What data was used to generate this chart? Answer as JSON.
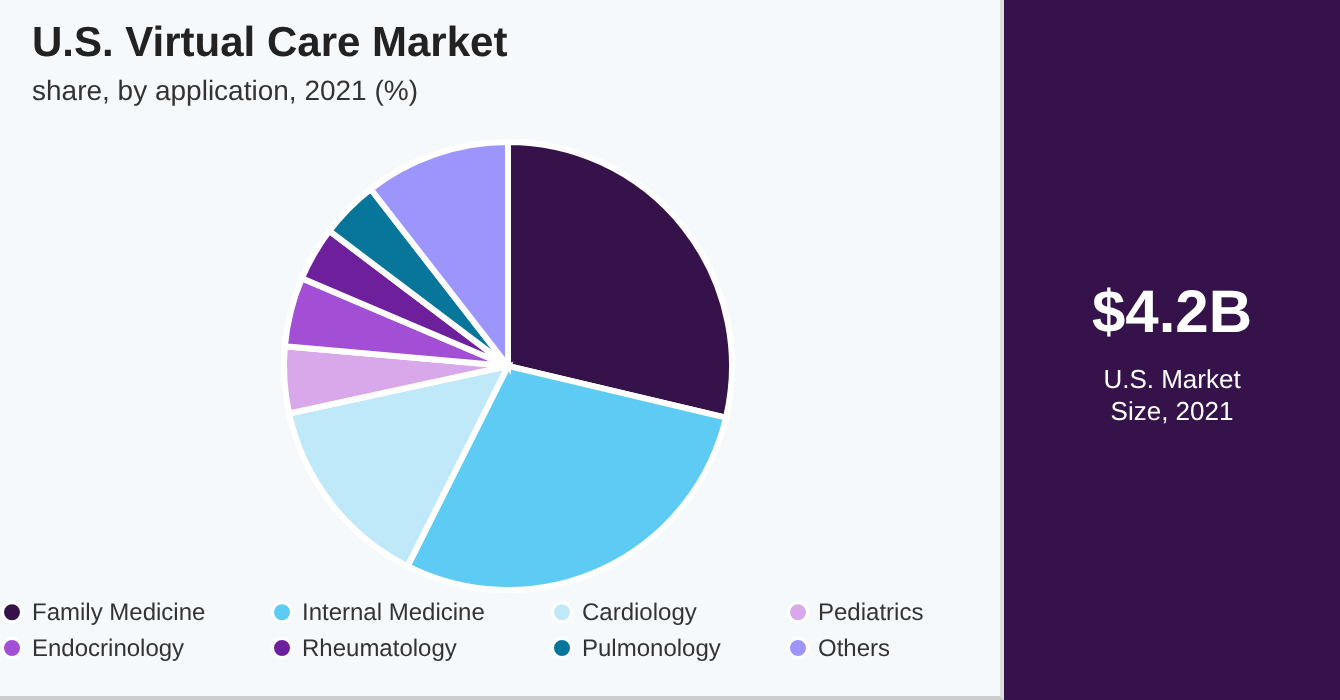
{
  "chart_data": {
    "type": "pie",
    "title": "U.S. Virtual Care Market",
    "subtitle": "share, by application, 2021 (%)",
    "categories": [
      "Family Medicine",
      "Internal Medicine",
      "Cardiology",
      "Pediatrics",
      "Endocrinology",
      "Rheumatology",
      "Pulmonology",
      "Others"
    ],
    "values": [
      28.7,
      28.7,
      14.2,
      4.8,
      5.0,
      3.9,
      4.2,
      10.5
    ],
    "colors": [
      "#35124a",
      "#5ecbf5",
      "#bfe9f8",
      "#d8a8ea",
      "#a24fd6",
      "#6e1f9c",
      "#08769a",
      "#9b95fc"
    ],
    "legend": "bottom",
    "annotations": [
      "$4.2B",
      "U.S. Market Size, 2021"
    ]
  }
}
